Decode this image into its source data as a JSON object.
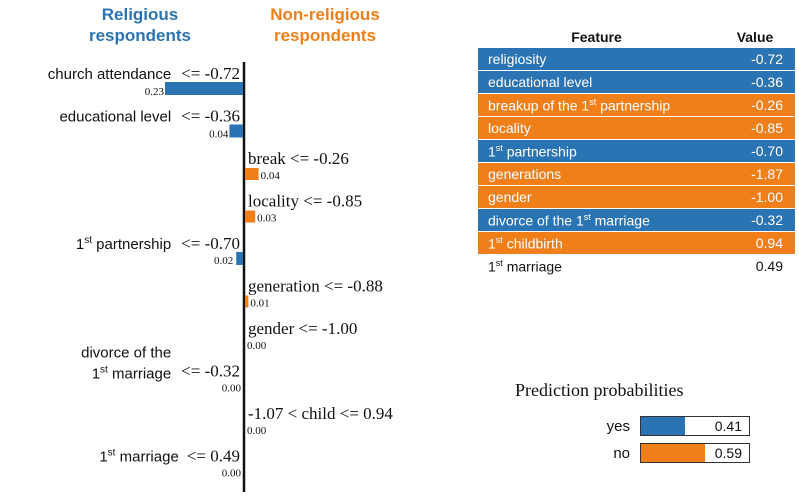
{
  "colors": {
    "religious": "#2b74b4",
    "nonreligious": "#f07f1a",
    "axis": "#111111"
  },
  "headers": {
    "religious": "Religious respondents",
    "nonreligious": "Non-religious respondents"
  },
  "chart_data": {
    "type": "bar",
    "xlim": [
      -0.23,
      0.04
    ],
    "bars": [
      {
        "label": "church attendance",
        "condition": "<= -0.72",
        "value": -0.23,
        "value_label": "0.23",
        "side": "religious"
      },
      {
        "label": "educational level",
        "condition": "<= -0.36",
        "value": -0.04,
        "value_label": "0.04",
        "side": "religious"
      },
      {
        "label": "break <= -0.26",
        "value": 0.04,
        "value_label": "0.04",
        "side": "nonreligious"
      },
      {
        "label": "locality <= -0.85",
        "value": 0.03,
        "value_label": "0.03",
        "side": "nonreligious"
      },
      {
        "label": "1st partnership",
        "label_sup": "st",
        "label_base": "1",
        "label_rest": " partnership",
        "condition": "<= -0.70",
        "value": -0.02,
        "value_label": "0.02",
        "side": "religious"
      },
      {
        "label": "generation <= -0.88",
        "value": 0.01,
        "value_label": "0.01",
        "side": "nonreligious"
      },
      {
        "label": "gender <= -1.00",
        "value": 0.0,
        "value_label": "0.00",
        "side": "nonreligious"
      },
      {
        "label": "divorce of the 1st marriage",
        "label_line1": "divorce of the",
        "label_base": "1",
        "label_sup": "st",
        "label_rest": " marriage",
        "condition": "<= -0.32",
        "value": 0.0,
        "value_label": "0.00",
        "side": "religious"
      },
      {
        "label": "-1.07 < child <= 0.94",
        "value": 0.0,
        "value_label": "0.00",
        "side": "nonreligious"
      },
      {
        "label": "1st marriage",
        "label_base": "1",
        "label_sup": "st",
        "label_rest": " marriage",
        "condition": "<= 0.49",
        "value": 0.0,
        "value_label": "0.00",
        "side": "religious"
      }
    ]
  },
  "table": {
    "headers": {
      "feature": "Feature",
      "value": "Value"
    },
    "rows": [
      {
        "feature": "religiosity",
        "value": "-0.72",
        "color": "blue"
      },
      {
        "feature": "educational level",
        "value": "-0.36",
        "color": "blue"
      },
      {
        "feature": "breakup of the 1st partnership",
        "pre": "breakup of the ",
        "base": "1",
        "sup": "st",
        "post": " partnership",
        "value": "-0.26",
        "color": "orange"
      },
      {
        "feature": "locality",
        "value": "-0.85",
        "color": "orange"
      },
      {
        "feature": "1st partnership",
        "pre": "",
        "base": "1",
        "sup": "st",
        "post": " partnership",
        "value": "-0.70",
        "color": "blue"
      },
      {
        "feature": "generations",
        "value": "-1.87",
        "color": "orange"
      },
      {
        "feature": "gender",
        "value": "-1.00",
        "color": "orange"
      },
      {
        "feature": "divorce of the 1st marriage",
        "pre": "divorce of the ",
        "base": "1",
        "sup": "st",
        "post": " marriage",
        "value": "-0.32",
        "color": "blue"
      },
      {
        "feature": "1st childbirth",
        "pre": "",
        "base": "1",
        "sup": "st",
        "post": " childbirth",
        "value": "0.94",
        "color": "orange"
      },
      {
        "feature": "1st marriage",
        "pre": "",
        "base": "1",
        "sup": "st",
        "post": " marriage",
        "value": "0.49",
        "color": "plain"
      }
    ]
  },
  "prediction": {
    "title": "Prediction probabilities",
    "items": [
      {
        "label": "yes",
        "value": 0.41,
        "value_label": "0.41",
        "color": "#2b74b4"
      },
      {
        "label": "no",
        "value": 0.59,
        "value_label": "0.59",
        "color": "#f07f1a"
      }
    ]
  }
}
